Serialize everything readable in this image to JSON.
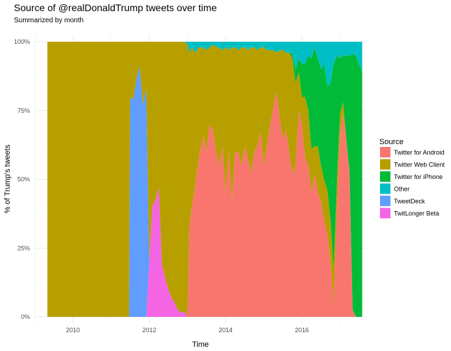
{
  "chart_data": {
    "type": "area",
    "stacked": true,
    "normalized": true,
    "title": "Source of @realDonaldTrump tweets over time",
    "subtitle": "Summarized by month",
    "xlabel": "Time",
    "ylabel": "% of Trump's tweets",
    "x_ticks": [
      "2010",
      "2012",
      "2014",
      "2016"
    ],
    "y_ticks": [
      "0%",
      "25%",
      "50%",
      "75%",
      "100%"
    ],
    "xlim": [
      2009.0,
      2017.7
    ],
    "ylim": [
      0,
      1
    ],
    "grid": true,
    "legend": {
      "title": "Source",
      "placement": "right",
      "items": [
        {
          "label": "Twitter for Android",
          "color": "#F8766D"
        },
        {
          "label": "Twitter Web Client",
          "color": "#B79F00"
        },
        {
          "label": "Twitter for iPhone",
          "color": "#00BA38"
        },
        {
          "label": "Other",
          "color": "#00BFC4"
        },
        {
          "label": "TweetDeck",
          "color": "#619CFF"
        },
        {
          "label": "TwitLonger Beta",
          "color": "#F564E3"
        }
      ]
    },
    "stack_order_bottom_to_top": [
      "Twitter for Android",
      "TwitLonger Beta",
      "TweetDeck",
      "Twitter Web Client",
      "Twitter for iPhone",
      "Other"
    ],
    "series": [
      {
        "name": "Twitter for Android",
        "color": "#F8766D",
        "points": [
          [
            2009.33,
            0
          ],
          [
            2011.5,
            0
          ],
          [
            2012.0,
            0
          ],
          [
            2013.0,
            0
          ],
          [
            2013.05,
            0.33
          ],
          [
            2013.3,
            0.58
          ],
          [
            2013.42,
            0.66
          ],
          [
            2013.5,
            0.6
          ],
          [
            2013.58,
            0.7
          ],
          [
            2013.67,
            0.68
          ],
          [
            2013.75,
            0.6
          ],
          [
            2013.83,
            0.55
          ],
          [
            2013.92,
            0.62
          ],
          [
            2014.0,
            0.45
          ],
          [
            2014.08,
            0.6
          ],
          [
            2014.17,
            0.42
          ],
          [
            2014.25,
            0.6
          ],
          [
            2014.33,
            0.6
          ],
          [
            2014.42,
            0.55
          ],
          [
            2014.5,
            0.62
          ],
          [
            2014.58,
            0.58
          ],
          [
            2014.67,
            0.52
          ],
          [
            2014.75,
            0.6
          ],
          [
            2014.83,
            0.62
          ],
          [
            2014.92,
            0.67
          ],
          [
            2015.0,
            0.55
          ],
          [
            2015.08,
            0.62
          ],
          [
            2015.17,
            0.7
          ],
          [
            2015.25,
            0.76
          ],
          [
            2015.33,
            0.82
          ],
          [
            2015.42,
            0.72
          ],
          [
            2015.5,
            0.65
          ],
          [
            2015.58,
            0.68
          ],
          [
            2015.67,
            0.6
          ],
          [
            2015.75,
            0.52
          ],
          [
            2015.83,
            0.55
          ],
          [
            2015.92,
            0.75
          ],
          [
            2016.0,
            0.7
          ],
          [
            2016.08,
            0.58
          ],
          [
            2016.17,
            0.55
          ],
          [
            2016.25,
            0.45
          ],
          [
            2016.33,
            0.52
          ],
          [
            2016.42,
            0.45
          ],
          [
            2016.5,
            0.42
          ],
          [
            2016.58,
            0.35
          ],
          [
            2016.67,
            0.3
          ],
          [
            2016.75,
            0.2
          ],
          [
            2016.83,
            0.05
          ],
          [
            2016.92,
            0.4
          ],
          [
            2017.0,
            0.67
          ],
          [
            2017.08,
            0.74
          ],
          [
            2017.17,
            0.62
          ],
          [
            2017.25,
            0.52
          ],
          [
            2017.33,
            0.02
          ],
          [
            2017.42,
            0.0
          ],
          [
            2017.58,
            0.0
          ]
        ]
      },
      {
        "name": "TwitLonger Beta",
        "color": "#F564E3",
        "points": [
          [
            2009.33,
            0
          ],
          [
            2011.92,
            0
          ],
          [
            2012.0,
            0.2
          ],
          [
            2012.08,
            0.4
          ],
          [
            2012.17,
            0.43
          ],
          [
            2012.25,
            0.47
          ],
          [
            2012.33,
            0.19
          ],
          [
            2012.42,
            0.14
          ],
          [
            2012.5,
            0.1
          ],
          [
            2012.58,
            0.07
          ],
          [
            2012.67,
            0.05
          ],
          [
            2012.75,
            0.025
          ],
          [
            2012.83,
            0.015
          ],
          [
            2012.92,
            0.02
          ],
          [
            2013.0,
            0
          ],
          [
            2017.58,
            0
          ]
        ]
      },
      {
        "name": "TweetDeck",
        "color": "#619CFF",
        "points": [
          [
            2009.33,
            0
          ],
          [
            2011.47,
            0
          ],
          [
            2011.5,
            0.8
          ],
          [
            2011.58,
            0.79
          ],
          [
            2011.67,
            0.87
          ],
          [
            2011.75,
            0.91
          ],
          [
            2011.83,
            0.77
          ],
          [
            2011.92,
            0.83
          ],
          [
            2012.0,
            0
          ],
          [
            2017.58,
            0
          ]
        ]
      },
      {
        "name": "Twitter Web Client",
        "color": "#B79F00",
        "points": [
          [
            2009.33,
            1.0
          ],
          [
            2011.5,
            0.2
          ],
          [
            2011.58,
            0.21
          ],
          [
            2011.67,
            0.13
          ],
          [
            2011.75,
            0.09
          ],
          [
            2011.83,
            0.23
          ],
          [
            2011.92,
            0.17
          ],
          [
            2012.0,
            0.8
          ],
          [
            2012.08,
            0.6
          ],
          [
            2012.17,
            0.57
          ],
          [
            2012.25,
            0.53
          ],
          [
            2012.33,
            0.81
          ],
          [
            2012.42,
            0.86
          ],
          [
            2012.5,
            0.9
          ],
          [
            2012.58,
            0.93
          ],
          [
            2012.67,
            0.95
          ],
          [
            2012.75,
            0.975
          ],
          [
            2012.83,
            0.985
          ],
          [
            2012.92,
            0.96
          ],
          [
            2013.0,
            0.99
          ],
          [
            2013.05,
            0.63
          ],
          [
            2013.3,
            0.4
          ],
          [
            2013.42,
            0.32
          ],
          [
            2013.5,
            0.37
          ],
          [
            2013.58,
            0.28
          ],
          [
            2013.67,
            0.31
          ],
          [
            2013.75,
            0.38
          ],
          [
            2013.83,
            0.43
          ],
          [
            2013.92,
            0.35
          ],
          [
            2014.0,
            0.53
          ],
          [
            2014.08,
            0.37
          ],
          [
            2014.17,
            0.56
          ],
          [
            2014.25,
            0.38
          ],
          [
            2014.33,
            0.37
          ],
          [
            2014.42,
            0.43
          ],
          [
            2014.5,
            0.36
          ],
          [
            2014.58,
            0.39
          ],
          [
            2014.67,
            0.46
          ],
          [
            2014.75,
            0.38
          ],
          [
            2014.83,
            0.35
          ],
          [
            2014.92,
            0.31
          ],
          [
            2015.0,
            0.43
          ],
          [
            2015.08,
            0.35
          ],
          [
            2015.17,
            0.27
          ],
          [
            2015.25,
            0.21
          ],
          [
            2015.33,
            0.14
          ],
          [
            2015.42,
            0.25
          ],
          [
            2015.5,
            0.32
          ],
          [
            2015.58,
            0.28
          ],
          [
            2015.67,
            0.36
          ],
          [
            2015.75,
            0.42
          ],
          [
            2015.83,
            0.3
          ],
          [
            2015.92,
            0.14
          ],
          [
            2016.0,
            0.1
          ],
          [
            2016.08,
            0.22
          ],
          [
            2016.17,
            0.2
          ],
          [
            2016.25,
            0.16
          ],
          [
            2016.33,
            0.1
          ],
          [
            2016.42,
            0.17
          ],
          [
            2016.5,
            0.13
          ],
          [
            2016.58,
            0.15
          ],
          [
            2016.67,
            0.16
          ],
          [
            2016.75,
            0.15
          ],
          [
            2016.83,
            0.12
          ],
          [
            2016.92,
            0.1
          ],
          [
            2017.0,
            0.07
          ],
          [
            2017.08,
            0.04
          ],
          [
            2017.17,
            0.02
          ],
          [
            2017.25,
            0.01
          ],
          [
            2017.33,
            0.005
          ],
          [
            2017.42,
            0.0
          ],
          [
            2017.58,
            0.0
          ]
        ]
      },
      {
        "name": "Twitter for iPhone",
        "color": "#00BA38",
        "points": [
          [
            2009.33,
            0
          ],
          [
            2015.67,
            0
          ],
          [
            2015.75,
            0.02
          ],
          [
            2015.83,
            0.05
          ],
          [
            2015.92,
            0.05
          ],
          [
            2016.0,
            0.12
          ],
          [
            2016.08,
            0.12
          ],
          [
            2016.17,
            0.2
          ],
          [
            2016.25,
            0.33
          ],
          [
            2016.33,
            0.36
          ],
          [
            2016.42,
            0.32
          ],
          [
            2016.5,
            0.35
          ],
          [
            2016.58,
            0.42
          ],
          [
            2016.67,
            0.38
          ],
          [
            2016.75,
            0.5
          ],
          [
            2016.83,
            0.75
          ],
          [
            2016.92,
            0.45
          ],
          [
            2017.0,
            0.2
          ],
          [
            2017.08,
            0.17
          ],
          [
            2017.17,
            0.31
          ],
          [
            2017.25,
            0.42
          ],
          [
            2017.33,
            0.93
          ],
          [
            2017.42,
            0.95
          ],
          [
            2017.5,
            0.92
          ],
          [
            2017.58,
            0.89
          ]
        ]
      },
      {
        "name": "Other",
        "color": "#00BFC4",
        "points": [
          [
            2009.33,
            0
          ],
          [
            2012.92,
            0
          ],
          [
            2013.0,
            0.01
          ],
          [
            2013.05,
            0.04
          ],
          [
            2013.12,
            0.02
          ],
          [
            2013.2,
            0.04
          ],
          [
            2013.3,
            0.02
          ],
          [
            2013.42,
            0.02
          ],
          [
            2013.5,
            0.03
          ],
          [
            2013.58,
            0.02
          ],
          [
            2013.67,
            0.01
          ],
          [
            2013.75,
            0.02
          ],
          [
            2013.83,
            0.02
          ],
          [
            2013.92,
            0.03
          ],
          [
            2014.0,
            0.02
          ],
          [
            2014.08,
            0.03
          ],
          [
            2014.17,
            0.02
          ],
          [
            2014.25,
            0.02
          ],
          [
            2014.33,
            0.03
          ],
          [
            2014.42,
            0.02
          ],
          [
            2014.5,
            0.02
          ],
          [
            2014.58,
            0.03
          ],
          [
            2014.67,
            0.02
          ],
          [
            2014.75,
            0.02
          ],
          [
            2014.83,
            0.03
          ],
          [
            2014.92,
            0.02
          ],
          [
            2015.0,
            0.02
          ],
          [
            2015.08,
            0.03
          ],
          [
            2015.17,
            0.03
          ],
          [
            2015.25,
            0.03
          ],
          [
            2015.33,
            0.04
          ],
          [
            2015.42,
            0.03
          ],
          [
            2015.5,
            0.03
          ],
          [
            2015.58,
            0.04
          ],
          [
            2015.67,
            0.04
          ],
          [
            2015.75,
            0.04
          ],
          [
            2015.83,
            0.1
          ],
          [
            2015.92,
            0.06
          ],
          [
            2016.0,
            0.08
          ],
          [
            2016.08,
            0.08
          ],
          [
            2016.17,
            0.05
          ],
          [
            2016.25,
            0.06
          ],
          [
            2016.33,
            0.02
          ],
          [
            2016.42,
            0.06
          ],
          [
            2016.5,
            0.1
          ],
          [
            2016.58,
            0.08
          ],
          [
            2016.67,
            0.16
          ],
          [
            2016.75,
            0.15
          ],
          [
            2016.83,
            0.08
          ],
          [
            2016.92,
            0.05
          ],
          [
            2017.0,
            0.06
          ],
          [
            2017.08,
            0.05
          ],
          [
            2017.17,
            0.05
          ],
          [
            2017.25,
            0.05
          ],
          [
            2017.33,
            0.045
          ],
          [
            2017.42,
            0.05
          ],
          [
            2017.5,
            0.08
          ],
          [
            2017.58,
            0.11
          ]
        ]
      }
    ]
  }
}
